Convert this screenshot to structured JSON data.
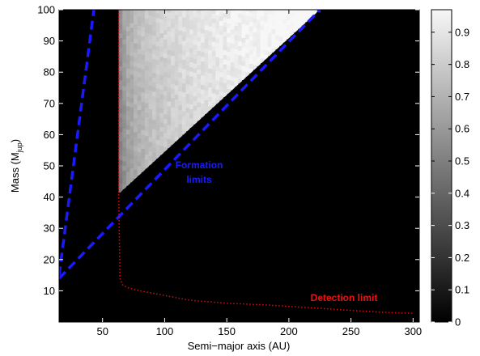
{
  "chart_data": {
    "type": "heatmap",
    "title": "",
    "xlabel": "Semi−major axis (AU)",
    "ylabel_main": "Mass (M",
    "ylabel_sub": "jup",
    "ylabel_end": ")",
    "xlim": [
      15,
      305
    ],
    "ylim": [
      0,
      100
    ],
    "xticks": [
      50,
      100,
      150,
      200,
      250,
      300
    ],
    "yticks": [
      10,
      20,
      30,
      40,
      50,
      60,
      70,
      80,
      90,
      100
    ],
    "colorbar": {
      "colormap": "gray",
      "range": [
        0,
        0.97
      ],
      "ticks": [
        0,
        0.1,
        0.2,
        0.3,
        0.4,
        0.5,
        0.6,
        0.7,
        0.8,
        0.9
      ]
    },
    "background_value": 0,
    "region": {
      "description_shape": "triangle",
      "x_range": [
        63,
        225
      ],
      "lower_boundary_line": {
        "x": [
          63,
          225
        ],
        "y": [
          41,
          100
        ]
      },
      "upper_y": 100,
      "value_profile": {
        "x": [
          63,
          65,
          70,
          80,
          90,
          100,
          120,
          150,
          200,
          225
        ],
        "value": [
          0.5,
          0.55,
          0.65,
          0.72,
          0.77,
          0.8,
          0.85,
          0.9,
          0.95,
          0.96
        ]
      }
    },
    "series": [
      {
        "name": "Formation limits",
        "style": "dashed",
        "color": "#1a1aff",
        "lines": [
          {
            "x": [
              15,
              225
            ],
            "y": [
              14,
              100
            ]
          },
          {
            "x": [
              15,
              43
            ],
            "y": [
              15,
              100
            ]
          }
        ]
      },
      {
        "name": "Detection limit",
        "style": "dotted",
        "color": "#cc1111",
        "x": [
          63,
          63,
          64,
          66,
          70,
          80,
          100,
          120,
          150,
          180,
          200,
          220,
          240,
          260,
          280,
          300
        ],
        "y": [
          100,
          40,
          14,
          12,
          11,
          10,
          8.5,
          7,
          6,
          5.5,
          5,
          4.5,
          4,
          3.5,
          3,
          2.8
        ]
      }
    ],
    "annotations": [
      {
        "text_line1": "Formation",
        "text_line2": "limits",
        "x": 185,
        "y": 52,
        "color": "#1a1aff"
      },
      {
        "text": "Detection limit",
        "x": 240,
        "y": 10,
        "color": "#ee1111"
      }
    ]
  }
}
